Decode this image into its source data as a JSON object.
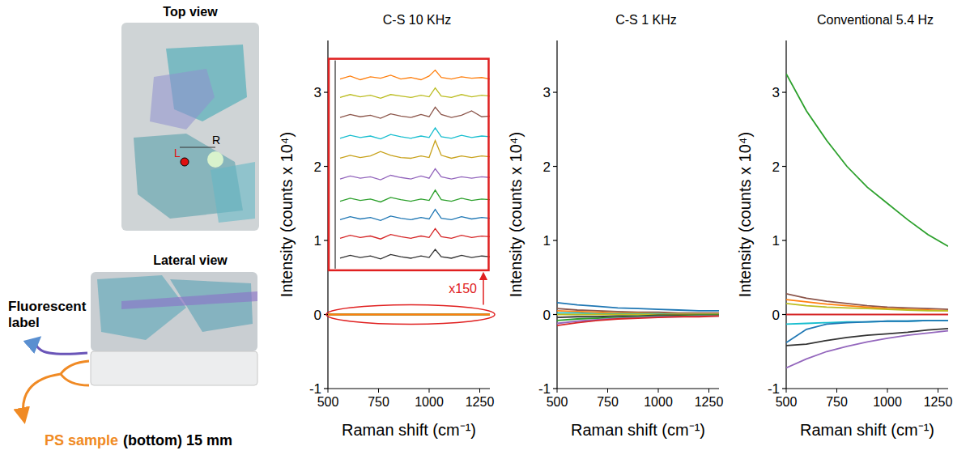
{
  "photo": {
    "top_view": "Top view",
    "lateral_view": "Lateral view",
    "point_left": "L",
    "point_right": "R",
    "fluorescent_label": "Fluorescent label",
    "ps_sample": "PS sample",
    "ps_sample_note": "(bottom) 15 mm"
  },
  "chart_data": [
    {
      "type": "line",
      "title": "C-S 10 KHz",
      "x_label": "Raman shift (cm⁻¹)",
      "y_label": "Intensity (counts x 10⁴)",
      "xlim": [
        500,
        1300
      ],
      "ylim": [
        -1,
        3.7
      ],
      "xticks": [
        500,
        750,
        1000,
        1250
      ],
      "yticks": [
        -1,
        0,
        1,
        2,
        3
      ],
      "x": [
        500,
        900,
        1300
      ],
      "series": [
        {
          "color": "#333333",
          "values": [
            0,
            0,
            0
          ]
        },
        {
          "color": "#d62728",
          "values": [
            0,
            0,
            0
          ]
        },
        {
          "color": "#1f77b4",
          "values": [
            0,
            0,
            0
          ]
        },
        {
          "color": "#2ca02c",
          "values": [
            0,
            0,
            0
          ]
        },
        {
          "color": "#9467bd",
          "values": [
            0,
            0,
            0
          ]
        },
        {
          "color": "#c8a21c",
          "values": [
            0,
            0,
            0
          ]
        },
        {
          "color": "#17becf",
          "values": [
            0,
            0,
            0
          ]
        },
        {
          "color": "#8c564b",
          "values": [
            0,
            0,
            0
          ]
        },
        {
          "color": "#bcbd22",
          "values": [
            0,
            0,
            0
          ]
        },
        {
          "color": "#ff7f0e",
          "values": [
            0,
            0,
            0
          ]
        }
      ],
      "inset": {
        "label": "x150",
        "x": [
          560,
          610,
          660,
          710,
          760,
          810,
          860,
          910,
          960,
          1000,
          1030,
          1060,
          1110,
          1160,
          1210,
          1260,
          1300
        ],
        "series": [
          {
            "color": "#ff7f0e",
            "values": [
              3.18,
              3.22,
              3.17,
              3.21,
              3.19,
              3.23,
              3.18,
              3.2,
              3.17,
              3.22,
              3.3,
              3.2,
              3.18,
              3.21,
              3.19,
              3.2,
              3.18
            ]
          },
          {
            "color": "#bcbd22",
            "values": [
              2.93,
              2.97,
              2.94,
              2.96,
              2.92,
              2.97,
              2.95,
              2.93,
              2.96,
              2.94,
              3.06,
              2.95,
              2.93,
              2.97,
              2.94,
              2.96,
              2.95
            ]
          },
          {
            "color": "#8c564b",
            "values": [
              2.66,
              2.7,
              2.67,
              2.69,
              2.65,
              2.71,
              2.68,
              2.66,
              2.7,
              2.67,
              2.8,
              2.7,
              2.66,
              2.69,
              2.75,
              2.67,
              2.68
            ]
          },
          {
            "color": "#17becf",
            "values": [
              2.38,
              2.42,
              2.39,
              2.41,
              2.37,
              2.43,
              2.4,
              2.38,
              2.41,
              2.39,
              2.52,
              2.4,
              2.38,
              2.42,
              2.39,
              2.41,
              2.4
            ]
          },
          {
            "color": "#c8a21c",
            "values": [
              2.11,
              2.15,
              2.12,
              2.14,
              2.2,
              2.15,
              2.12,
              2.11,
              2.14,
              2.12,
              2.35,
              2.15,
              2.11,
              2.14,
              2.12,
              2.14,
              2.13
            ]
          },
          {
            "color": "#9467bd",
            "values": [
              1.83,
              1.87,
              1.84,
              1.86,
              1.82,
              1.88,
              1.85,
              1.83,
              1.87,
              1.84,
              1.97,
              1.86,
              1.83,
              1.86,
              1.84,
              1.86,
              1.85
            ]
          },
          {
            "color": "#2ca02c",
            "values": [
              1.53,
              1.57,
              1.54,
              1.56,
              1.52,
              1.58,
              1.55,
              1.53,
              1.56,
              1.54,
              1.68,
              1.55,
              1.53,
              1.57,
              1.54,
              1.56,
              1.55
            ]
          },
          {
            "color": "#1f77b4",
            "values": [
              1.28,
              1.32,
              1.29,
              1.31,
              1.27,
              1.33,
              1.3,
              1.28,
              1.31,
              1.29,
              1.42,
              1.3,
              1.28,
              1.32,
              1.29,
              1.31,
              1.3
            ]
          },
          {
            "color": "#d62728",
            "values": [
              1.03,
              1.07,
              1.04,
              1.06,
              1.02,
              1.08,
              1.05,
              1.03,
              1.06,
              1.04,
              1.16,
              1.05,
              1.03,
              1.07,
              1.04,
              1.06,
              1.05
            ]
          },
          {
            "color": "#333333",
            "values": [
              0.76,
              0.8,
              0.77,
              0.79,
              0.75,
              0.81,
              0.78,
              0.76,
              0.79,
              0.77,
              0.88,
              0.78,
              0.76,
              0.8,
              0.77,
              0.79,
              0.78
            ]
          }
        ]
      }
    },
    {
      "type": "line",
      "title": "C-S 1 KHz",
      "x_label": "Raman shift (cm⁻¹)",
      "y_label": "Intensity (counts x 10⁴)",
      "xlim": [
        500,
        1300
      ],
      "ylim": [
        -1,
        3.7
      ],
      "xticks": [
        500,
        750,
        1000,
        1250
      ],
      "yticks": [
        -1,
        0,
        1,
        2,
        3
      ],
      "x": [
        500,
        600,
        700,
        800,
        900,
        1000,
        1100,
        1200,
        1300
      ],
      "series": [
        {
          "color": "#8c564b",
          "values": [
            0.08,
            0.06,
            0.05,
            0.04,
            0.03,
            0.03,
            0.02,
            0.02,
            0.02
          ]
        },
        {
          "color": "#ff7f0e",
          "values": [
            0.05,
            0.04,
            0.03,
            0.02,
            0.02,
            0.01,
            0.01,
            0.01,
            0.01
          ]
        },
        {
          "color": "#17becf",
          "values": [
            0.02,
            0.02,
            0.01,
            0.01,
            0.01,
            0.01,
            0.0,
            0.0,
            0.0
          ]
        },
        {
          "color": "#bcbd22",
          "values": [
            0.0,
            0.0,
            0.0,
            0.0,
            0.0,
            0.0,
            0.0,
            0.0,
            0.0
          ]
        },
        {
          "color": "#333333",
          "values": [
            -0.04,
            -0.03,
            -0.03,
            -0.02,
            -0.02,
            -0.01,
            -0.01,
            -0.01,
            -0.01
          ]
        },
        {
          "color": "#2ca02c",
          "values": [
            -0.08,
            -0.06,
            -0.05,
            -0.04,
            -0.03,
            -0.02,
            -0.02,
            -0.01,
            -0.01
          ]
        },
        {
          "color": "#9467bd",
          "values": [
            -0.12,
            -0.09,
            -0.07,
            -0.05,
            -0.04,
            -0.03,
            -0.03,
            -0.02,
            -0.02
          ]
        },
        {
          "color": "#d62728",
          "values": [
            -0.15,
            -0.11,
            -0.08,
            -0.06,
            -0.05,
            -0.04,
            -0.03,
            -0.03,
            -0.02
          ]
        },
        {
          "color": "#1f77b4",
          "values": [
            0.16,
            0.13,
            0.11,
            0.09,
            0.08,
            0.07,
            0.06,
            0.05,
            0.05
          ]
        }
      ]
    },
    {
      "type": "line",
      "title": "Conventional 5.4 Hz",
      "x_label": "Raman shift (cm⁻¹)",
      "y_label": "Intensity (counts x 10⁴)",
      "xlim": [
        500,
        1300
      ],
      "ylim": [
        -1,
        3.7
      ],
      "xticks": [
        500,
        750,
        1000,
        1250
      ],
      "yticks": [
        -1,
        0,
        1,
        2,
        3
      ],
      "x": [
        500,
        600,
        700,
        800,
        900,
        1000,
        1100,
        1200,
        1300
      ],
      "series": [
        {
          "color": "#2ca02c",
          "values": [
            3.25,
            2.75,
            2.35,
            2.0,
            1.72,
            1.5,
            1.28,
            1.08,
            0.92
          ]
        },
        {
          "color": "#8c564b",
          "values": [
            0.28,
            0.22,
            0.18,
            0.15,
            0.12,
            0.1,
            0.09,
            0.08,
            0.07
          ]
        },
        {
          "color": "#ff7f0e",
          "values": [
            0.2,
            0.17,
            0.14,
            0.12,
            0.1,
            0.08,
            0.07,
            0.06,
            0.05
          ]
        },
        {
          "color": "#bcbd22",
          "values": [
            0.15,
            0.12,
            0.1,
            0.09,
            0.08,
            0.07,
            0.06,
            0.05,
            0.05
          ]
        },
        {
          "color": "#d62728",
          "values": [
            0,
            0,
            0,
            0,
            0,
            0,
            0,
            0,
            0
          ]
        },
        {
          "color": "#17becf",
          "values": [
            -0.13,
            -0.12,
            -0.11,
            -0.1,
            -0.1,
            -0.09,
            -0.09,
            -0.08,
            -0.08
          ]
        },
        {
          "color": "#1f77b4",
          "values": [
            -0.38,
            -0.2,
            -0.13,
            -0.11,
            -0.1,
            -0.09,
            -0.09,
            -0.08,
            -0.08
          ]
        },
        {
          "color": "#333333",
          "values": [
            -0.42,
            -0.4,
            -0.35,
            -0.31,
            -0.28,
            -0.26,
            -0.24,
            -0.21,
            -0.19
          ]
        },
        {
          "color": "#9467bd",
          "values": [
            -0.72,
            -0.6,
            -0.5,
            -0.43,
            -0.37,
            -0.32,
            -0.28,
            -0.25,
            -0.22
          ]
        }
      ]
    }
  ]
}
